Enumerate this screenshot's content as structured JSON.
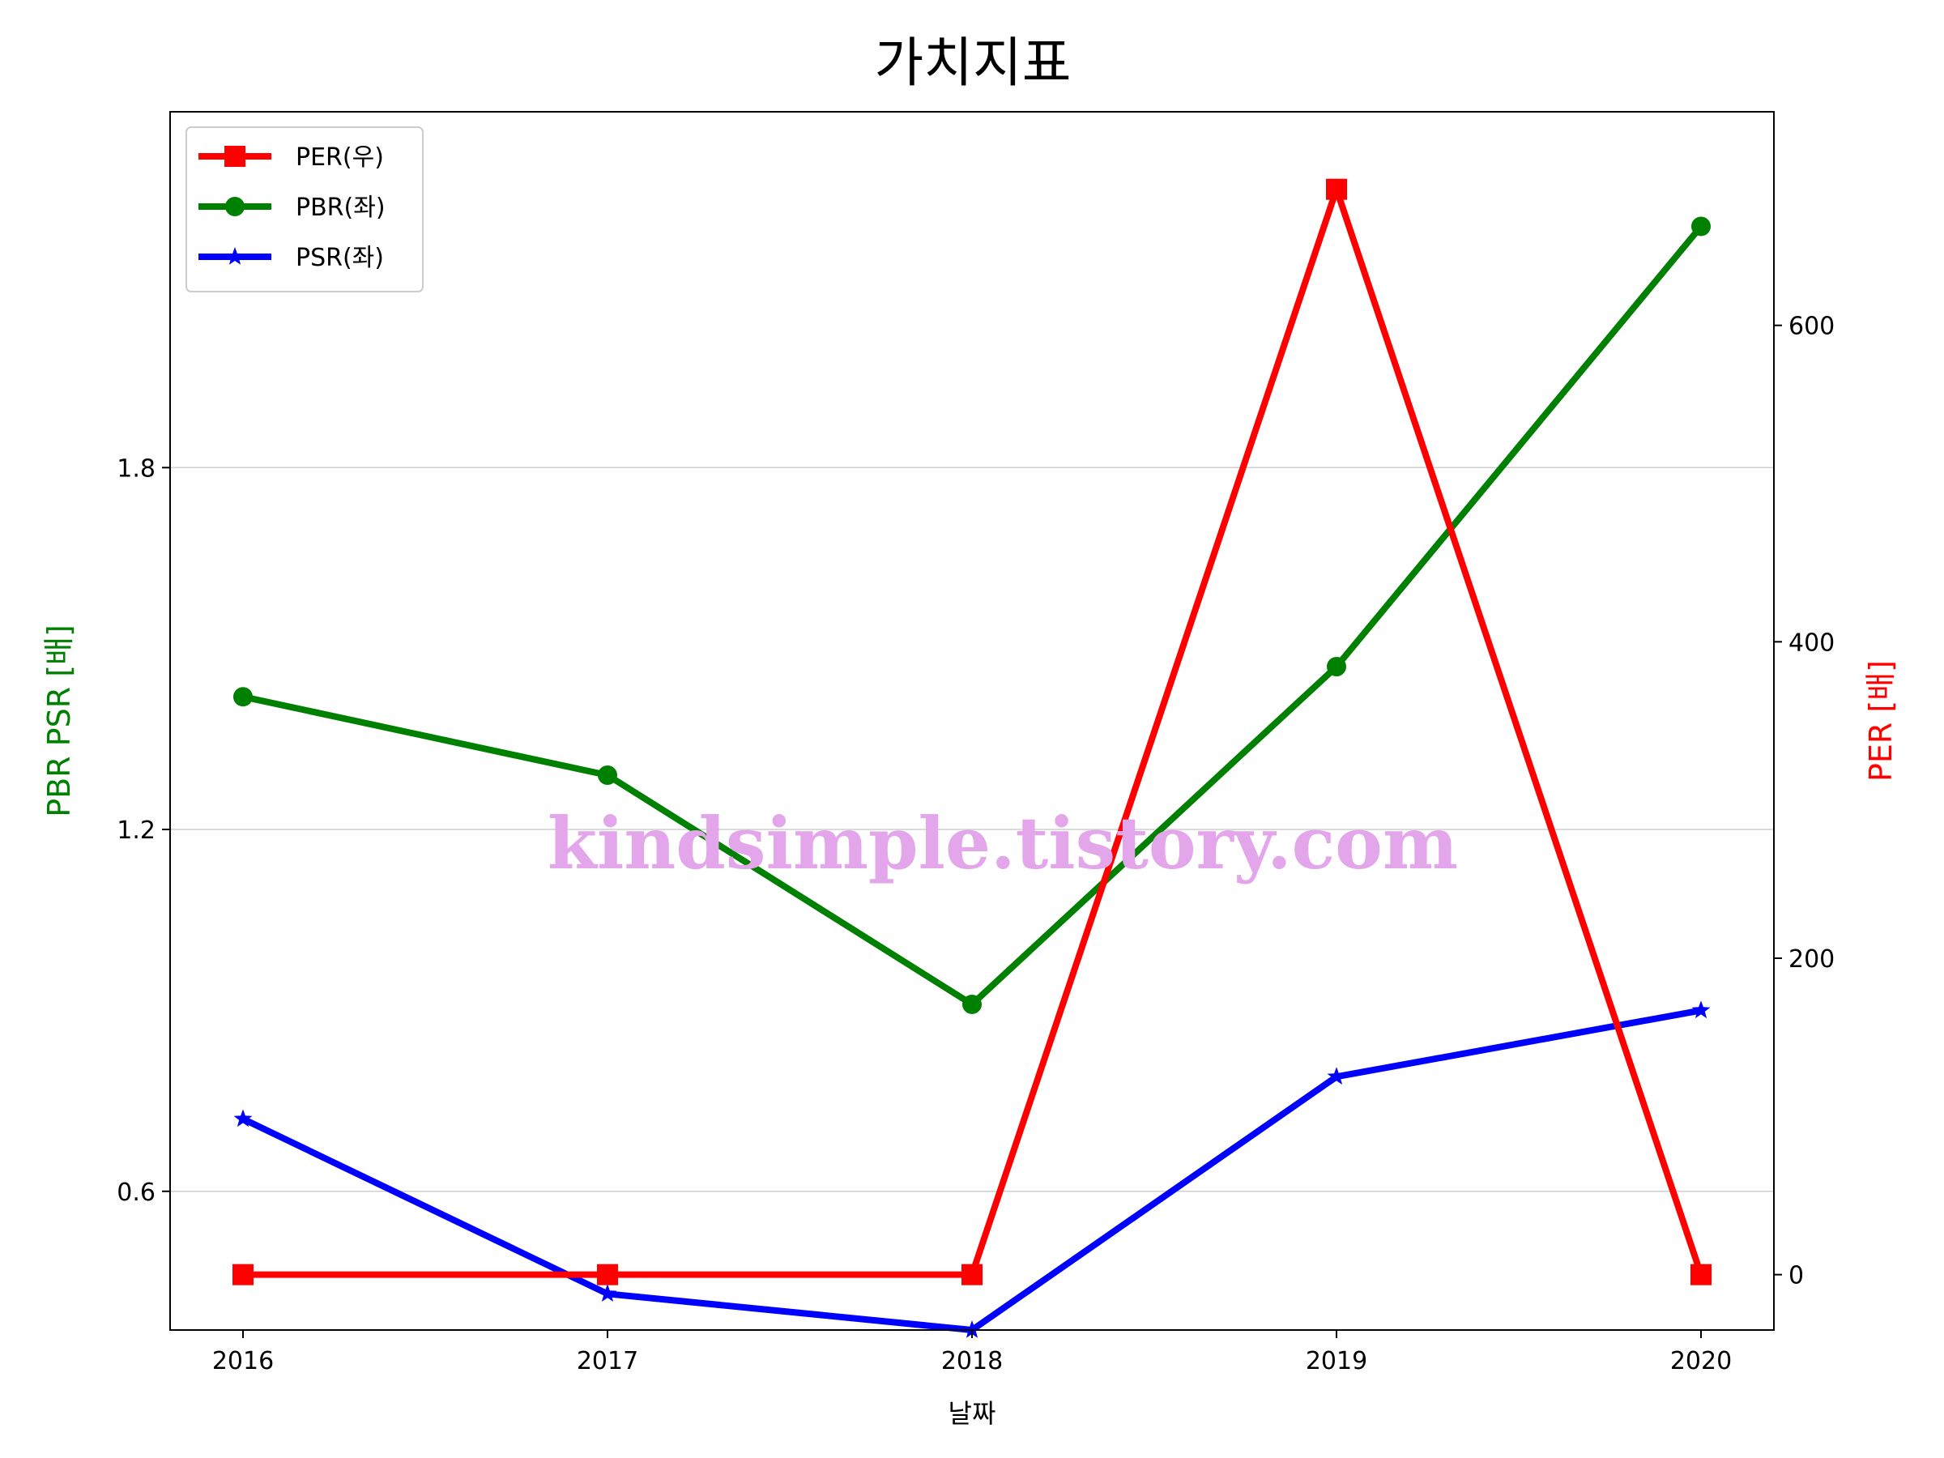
{
  "chart_data": {
    "type": "line",
    "title": "가치지표",
    "xlabel": "날짜",
    "ylabel_left": "PBR PSR [배]",
    "ylabel_right": "PER [배]",
    "ylabel_left_color": "#008000",
    "ylabel_right_color": "#ff0000",
    "categories": [
      "2016",
      "2017",
      "2018",
      "2019",
      "2020"
    ],
    "left_ylim": [
      0.37,
      2.39
    ],
    "right_ylim": [
      -35,
      735
    ],
    "left_yticks": [
      0.6,
      1.2,
      1.8
    ],
    "left_ytick_labels": [
      "0.6",
      "1.2",
      "1.8"
    ],
    "right_yticks": [
      0,
      200,
      400,
      600
    ],
    "right_ytick_labels": [
      "0",
      "200",
      "400",
      "600"
    ],
    "grid": "horizontal (left axis)",
    "legend_position": "top-left",
    "series": [
      {
        "name": "PER(우)",
        "axis": "right",
        "color": "#ff0000",
        "marker": "square",
        "values": [
          0,
          0,
          0,
          686,
          0
        ]
      },
      {
        "name": "PBR(좌)",
        "axis": "left",
        "color": "#008000",
        "marker": "circle",
        "values": [
          1.42,
          1.29,
          0.91,
          1.47,
          2.2
        ]
      },
      {
        "name": "PSR(좌)",
        "axis": "left",
        "color": "#0000ff",
        "marker": "star",
        "values": [
          0.72,
          0.43,
          0.37,
          0.79,
          0.9
        ]
      }
    ],
    "watermark": {
      "text": "kindsimple.tistory.com",
      "color": "#e3a6ea"
    }
  }
}
